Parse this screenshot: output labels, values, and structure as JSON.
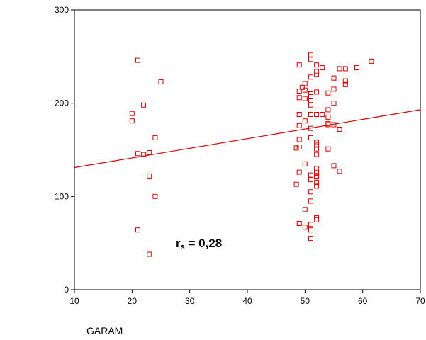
{
  "chart_data": {
    "type": "scatter",
    "xlabel": "GARAM",
    "ylabel": "",
    "xlim": [
      10,
      70
    ],
    "ylim": [
      0,
      300
    ],
    "x_ticks": [
      10,
      20,
      30,
      40,
      50,
      60,
      70
    ],
    "y_ticks": [
      0,
      100,
      200,
      300
    ],
    "grid": false,
    "colors": {
      "points": "#dd0000",
      "line": "#dd0000",
      "axis": "#000000"
    },
    "annotation": {
      "text": "r",
      "subscript": "s",
      "rest": " = 0,28",
      "x": 27,
      "y": 48
    },
    "fit_line": {
      "x": [
        10,
        70
      ],
      "y": [
        131,
        193
      ]
    },
    "points": [
      [
        21,
        246
      ],
      [
        25,
        223
      ],
      [
        22,
        198
      ],
      [
        20,
        189
      ],
      [
        20,
        181
      ],
      [
        24,
        163
      ],
      [
        23,
        147
      ],
      [
        21,
        146
      ],
      [
        22,
        145
      ],
      [
        23,
        122
      ],
      [
        24,
        100
      ],
      [
        21,
        64
      ],
      [
        23,
        38
      ],
      [
        51,
        252
      ],
      [
        51,
        247
      ],
      [
        61.5,
        245
      ],
      [
        49,
        241
      ],
      [
        52,
        241
      ],
      [
        53,
        238
      ],
      [
        56,
        237
      ],
      [
        57,
        237
      ],
      [
        59,
        238
      ],
      [
        52,
        234
      ],
      [
        52,
        231
      ],
      [
        51,
        228
      ],
      [
        55,
        227
      ],
      [
        55,
        226
      ],
      [
        50,
        221
      ],
      [
        57,
        224
      ],
      [
        57,
        220
      ],
      [
        49.5,
        217
      ],
      [
        50,
        214
      ],
      [
        49,
        213
      ],
      [
        55,
        215
      ],
      [
        54,
        211
      ],
      [
        52,
        212
      ],
      [
        51,
        210
      ],
      [
        51,
        207
      ],
      [
        49,
        206
      ],
      [
        50,
        205
      ],
      [
        51,
        203
      ],
      [
        51,
        198
      ],
      [
        55,
        200
      ],
      [
        54,
        193
      ],
      [
        49,
        188
      ],
      [
        51,
        188
      ],
      [
        52,
        188
      ],
      [
        53,
        188
      ],
      [
        54,
        185
      ],
      [
        50,
        181
      ],
      [
        49,
        176
      ],
      [
        54,
        178
      ],
      [
        54,
        177
      ],
      [
        55,
        177
      ],
      [
        56,
        172
      ],
      [
        51,
        173
      ],
      [
        51,
        163
      ],
      [
        49,
        161
      ],
      [
        52,
        158
      ],
      [
        52,
        155
      ],
      [
        49,
        153
      ],
      [
        48.5,
        152
      ],
      [
        52,
        151
      ],
      [
        54,
        151
      ],
      [
        52,
        145
      ],
      [
        50,
        135
      ],
      [
        55,
        133
      ],
      [
        52,
        130
      ],
      [
        52,
        127
      ],
      [
        52,
        125
      ],
      [
        49,
        126
      ],
      [
        56,
        127
      ],
      [
        51,
        123
      ],
      [
        52,
        122
      ],
      [
        52,
        121
      ],
      [
        51,
        118
      ],
      [
        52,
        115
      ],
      [
        48.5,
        113
      ],
      [
        52,
        111
      ],
      [
        51,
        105
      ],
      [
        51,
        95
      ],
      [
        50,
        86
      ],
      [
        52,
        77
      ],
      [
        52,
        75
      ],
      [
        49,
        71
      ],
      [
        51,
        70
      ],
      [
        50,
        67
      ],
      [
        51,
        64
      ],
      [
        51,
        55
      ]
    ]
  }
}
